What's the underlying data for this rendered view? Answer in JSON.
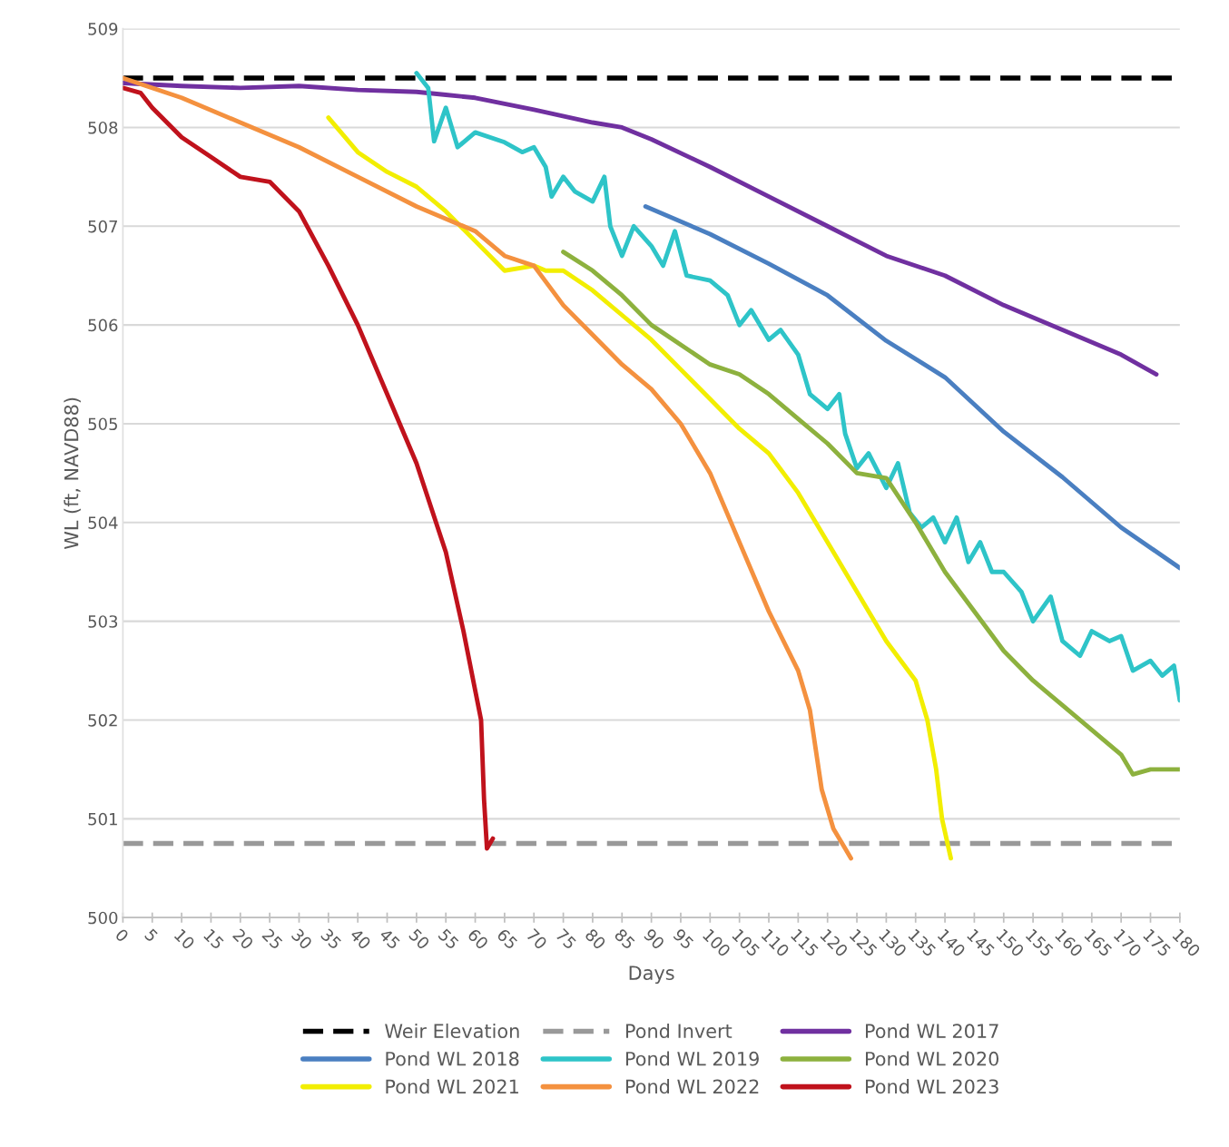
{
  "chart_data": {
    "type": "line",
    "xlabel": "Days",
    "ylabel": "WL (ft, NAVD88)",
    "xlim": [
      0,
      180
    ],
    "xticks": [
      0,
      5,
      10,
      15,
      20,
      25,
      30,
      35,
      40,
      45,
      50,
      55,
      60,
      65,
      70,
      75,
      80,
      85,
      90,
      95,
      100,
      105,
      110,
      115,
      120,
      125,
      130,
      135,
      140,
      145,
      150,
      155,
      160,
      165,
      170,
      175,
      180
    ],
    "ylim": [
      500,
      509
    ],
    "yticks": [
      500,
      501,
      502,
      503,
      504,
      505,
      506,
      507,
      508,
      509
    ],
    "grid": "y",
    "legend": "bottom",
    "line_style": "solid",
    "marker": "none",
    "ref_lines": [
      {
        "axis": "y",
        "value": 508.5,
        "label": "Weir Elevation",
        "color": "#000000",
        "line_style": "dashed"
      },
      {
        "axis": "y",
        "value": 500.75,
        "label": "Pond Invert",
        "color": "#999999",
        "line_style": "dashed"
      }
    ],
    "series": [
      {
        "name": "Pond WL 2017",
        "color": "#7030a0",
        "x": [
          0,
          10,
          20,
          30,
          40,
          50,
          55,
          60,
          70,
          80,
          85,
          90,
          100,
          110,
          120,
          130,
          140,
          150,
          160,
          170,
          176
        ],
        "values": [
          508.45,
          508.42,
          508.4,
          508.42,
          508.38,
          508.36,
          508.33,
          508.3,
          508.18,
          508.05,
          508.0,
          507.88,
          507.6,
          507.3,
          507.0,
          506.7,
          506.5,
          506.2,
          505.95,
          505.7,
          505.5
        ]
      },
      {
        "name": "Pond WL 2018",
        "color": "#4a7fc1",
        "x": [
          89,
          100,
          110,
          120,
          130,
          140,
          150,
          160,
          170,
          180
        ],
        "values": [
          507.2,
          506.92,
          506.62,
          506.3,
          505.84,
          505.47,
          504.92,
          504.46,
          503.95,
          503.54
        ]
      },
      {
        "name": "Pond WL 2019",
        "color": "#2ec4c8",
        "x": [
          50,
          52,
          53,
          55,
          57,
          60,
          65,
          68,
          70,
          72,
          73,
          75,
          77,
          80,
          82,
          83,
          85,
          87,
          90,
          92,
          94,
          96,
          100,
          103,
          105,
          107,
          110,
          112,
          115,
          117,
          120,
          122,
          123,
          125,
          127,
          130,
          132,
          134,
          136,
          138,
          140,
          142,
          144,
          146,
          148,
          150,
          153,
          155,
          158,
          160,
          163,
          165,
          168,
          170,
          172,
          175,
          177,
          179,
          180
        ],
        "values": [
          508.55,
          508.4,
          507.86,
          508.2,
          507.8,
          507.95,
          507.85,
          507.75,
          507.8,
          507.6,
          507.3,
          507.5,
          507.35,
          507.25,
          507.5,
          507.0,
          506.7,
          507.0,
          506.8,
          506.6,
          506.95,
          506.5,
          506.45,
          506.3,
          506.0,
          506.15,
          505.85,
          505.95,
          505.7,
          505.3,
          505.15,
          505.3,
          504.9,
          504.55,
          504.7,
          504.35,
          504.6,
          504.1,
          503.95,
          504.05,
          503.8,
          504.05,
          503.6,
          503.8,
          503.5,
          503.5,
          503.3,
          503.0,
          503.25,
          502.8,
          502.65,
          502.9,
          502.8,
          502.85,
          502.5,
          502.6,
          502.45,
          502.55,
          502.2
        ]
      },
      {
        "name": "Pond WL 2020",
        "color": "#8db13e",
        "x": [
          75,
          80,
          85,
          90,
          100,
          105,
          110,
          115,
          120,
          125,
          130,
          135,
          140,
          145,
          150,
          155,
          160,
          165,
          170,
          172,
          175,
          180
        ],
        "values": [
          506.74,
          506.55,
          506.3,
          506.0,
          505.6,
          505.5,
          505.3,
          505.05,
          504.8,
          504.5,
          504.45,
          504.0,
          503.5,
          503.1,
          502.7,
          502.4,
          502.15,
          501.9,
          501.65,
          501.45,
          501.5,
          501.5
        ]
      },
      {
        "name": "Pond WL 2021",
        "color": "#f2ee00",
        "x": [
          35,
          40,
          45,
          50,
          55,
          60,
          65,
          70,
          72,
          75,
          80,
          85,
          90,
          95,
          100,
          105,
          110,
          115,
          120,
          125,
          130,
          135,
          137,
          138.5,
          139.5,
          141
        ],
        "values": [
          508.1,
          507.75,
          507.55,
          507.4,
          507.15,
          506.85,
          506.55,
          506.6,
          506.55,
          506.55,
          506.35,
          506.1,
          505.85,
          505.55,
          505.25,
          504.95,
          504.7,
          504.3,
          503.8,
          503.3,
          502.8,
          502.4,
          502.0,
          501.5,
          501.0,
          500.6
        ]
      },
      {
        "name": "Pond WL 2022",
        "color": "#f4913f",
        "x": [
          0,
          10,
          20,
          30,
          40,
          50,
          60,
          65,
          70,
          75,
          80,
          85,
          90,
          95,
          100,
          105,
          110,
          115,
          117,
          119,
          121,
          123,
          124
        ],
        "values": [
          508.5,
          508.3,
          508.05,
          507.8,
          507.5,
          507.2,
          506.95,
          506.7,
          506.6,
          506.2,
          505.9,
          505.6,
          505.35,
          505.0,
          504.5,
          503.8,
          503.1,
          502.5,
          502.1,
          501.3,
          500.9,
          500.7,
          500.6
        ]
      },
      {
        "name": "Pond WL 2023",
        "color": "#c0121c",
        "x": [
          0,
          3,
          5,
          10,
          15,
          20,
          25,
          30,
          35,
          40,
          45,
          50,
          55,
          58,
          61,
          61.5,
          62,
          63
        ],
        "values": [
          508.4,
          508.35,
          508.2,
          507.9,
          507.7,
          507.5,
          507.45,
          507.15,
          506.6,
          506.0,
          505.3,
          504.6,
          503.7,
          502.9,
          502.0,
          501.2,
          500.7,
          500.8
        ]
      }
    ]
  }
}
